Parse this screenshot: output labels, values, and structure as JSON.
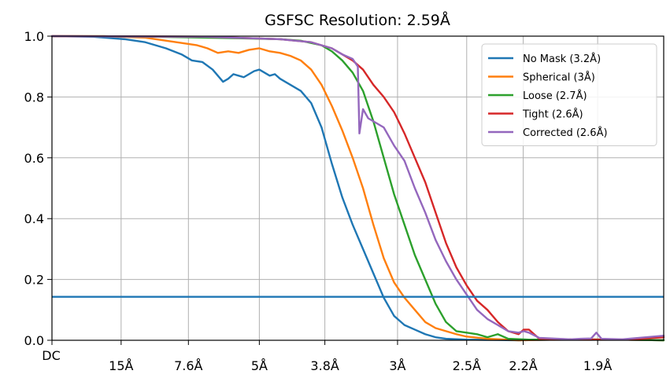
{
  "chart_data": {
    "type": "line",
    "title": "GSFSC Resolution: 2.59Å",
    "xlabel": "",
    "ylabel": "",
    "xlim": [
      0,
      0.59
    ],
    "ylim": [
      0,
      1.0
    ],
    "grid": true,
    "legend_position": "top-right",
    "y_ticks": [
      {
        "value": 0.0,
        "label": "0.0"
      },
      {
        "value": 0.2,
        "label": "0.2"
      },
      {
        "value": 0.4,
        "label": "0.4"
      },
      {
        "value": 0.6,
        "label": "0.6"
      },
      {
        "value": 0.8,
        "label": "0.8"
      },
      {
        "value": 1.0,
        "label": "1.0"
      }
    ],
    "x_ticks": [
      {
        "value": 0.0,
        "label": "DC"
      },
      {
        "value": 0.0667,
        "label": "15Å"
      },
      {
        "value": 0.1316,
        "label": "7.6Å"
      },
      {
        "value": 0.2,
        "label": "5Å"
      },
      {
        "value": 0.2632,
        "label": "3.8Å"
      },
      {
        "value": 0.3333,
        "label": "3Å"
      },
      {
        "value": 0.4,
        "label": "2.5Å"
      },
      {
        "value": 0.4545,
        "label": "2.2Å"
      },
      {
        "value": 0.5263,
        "label": "1.9Å"
      }
    ],
    "threshold": {
      "y": 0.143,
      "color": "#1f77b4"
    },
    "series": [
      {
        "name": "No Mask (3.2Å)",
        "color": "#1f77b4",
        "points": [
          [
            0.0,
            1.0
          ],
          [
            0.04,
            0.998
          ],
          [
            0.07,
            0.99
          ],
          [
            0.09,
            0.98
          ],
          [
            0.11,
            0.96
          ],
          [
            0.125,
            0.94
          ],
          [
            0.135,
            0.92
          ],
          [
            0.145,
            0.915
          ],
          [
            0.155,
            0.89
          ],
          [
            0.16,
            0.87
          ],
          [
            0.165,
            0.85
          ],
          [
            0.17,
            0.86
          ],
          [
            0.175,
            0.875
          ],
          [
            0.18,
            0.87
          ],
          [
            0.185,
            0.865
          ],
          [
            0.19,
            0.875
          ],
          [
            0.195,
            0.885
          ],
          [
            0.2,
            0.89
          ],
          [
            0.205,
            0.88
          ],
          [
            0.21,
            0.87
          ],
          [
            0.215,
            0.875
          ],
          [
            0.22,
            0.86
          ],
          [
            0.23,
            0.84
          ],
          [
            0.24,
            0.82
          ],
          [
            0.25,
            0.78
          ],
          [
            0.26,
            0.7
          ],
          [
            0.27,
            0.58
          ],
          [
            0.28,
            0.47
          ],
          [
            0.29,
            0.38
          ],
          [
            0.3,
            0.3
          ],
          [
            0.31,
            0.22
          ],
          [
            0.32,
            0.14
          ],
          [
            0.33,
            0.08
          ],
          [
            0.34,
            0.05
          ],
          [
            0.35,
            0.035
          ],
          [
            0.36,
            0.02
          ],
          [
            0.37,
            0.01
          ],
          [
            0.38,
            0.005
          ],
          [
            0.4,
            0.002
          ],
          [
            0.45,
            0.0
          ],
          [
            0.5,
            0.003
          ],
          [
            0.55,
            0.002
          ],
          [
            0.59,
            0.0
          ]
        ]
      },
      {
        "name": "Spherical (3Å)",
        "color": "#ff7f0e",
        "points": [
          [
            0.0,
            1.0
          ],
          [
            0.05,
            1.0
          ],
          [
            0.09,
            0.995
          ],
          [
            0.12,
            0.98
          ],
          [
            0.14,
            0.97
          ],
          [
            0.15,
            0.96
          ],
          [
            0.16,
            0.945
          ],
          [
            0.17,
            0.95
          ],
          [
            0.18,
            0.945
          ],
          [
            0.19,
            0.955
          ],
          [
            0.2,
            0.96
          ],
          [
            0.21,
            0.95
          ],
          [
            0.22,
            0.945
          ],
          [
            0.23,
            0.935
          ],
          [
            0.24,
            0.92
          ],
          [
            0.25,
            0.89
          ],
          [
            0.26,
            0.84
          ],
          [
            0.27,
            0.77
          ],
          [
            0.28,
            0.69
          ],
          [
            0.29,
            0.6
          ],
          [
            0.3,
            0.5
          ],
          [
            0.31,
            0.38
          ],
          [
            0.32,
            0.27
          ],
          [
            0.33,
            0.19
          ],
          [
            0.34,
            0.14
          ],
          [
            0.35,
            0.1
          ],
          [
            0.36,
            0.06
          ],
          [
            0.37,
            0.04
          ],
          [
            0.38,
            0.03
          ],
          [
            0.39,
            0.02
          ],
          [
            0.4,
            0.012
          ],
          [
            0.42,
            0.005
          ],
          [
            0.45,
            0.0
          ],
          [
            0.5,
            0.003
          ],
          [
            0.55,
            0.002
          ],
          [
            0.59,
            0.0
          ]
        ]
      },
      {
        "name": "Loose (2.7Å)",
        "color": "#2ca02c",
        "points": [
          [
            0.0,
            1.0
          ],
          [
            0.1,
            0.998
          ],
          [
            0.18,
            0.993
          ],
          [
            0.22,
            0.99
          ],
          [
            0.24,
            0.985
          ],
          [
            0.26,
            0.97
          ],
          [
            0.27,
            0.95
          ],
          [
            0.28,
            0.92
          ],
          [
            0.29,
            0.88
          ],
          [
            0.3,
            0.82
          ],
          [
            0.31,
            0.72
          ],
          [
            0.32,
            0.6
          ],
          [
            0.33,
            0.48
          ],
          [
            0.34,
            0.38
          ],
          [
            0.35,
            0.28
          ],
          [
            0.36,
            0.2
          ],
          [
            0.37,
            0.12
          ],
          [
            0.38,
            0.06
          ],
          [
            0.39,
            0.03
          ],
          [
            0.4,
            0.025
          ],
          [
            0.41,
            0.02
          ],
          [
            0.42,
            0.01
          ],
          [
            0.43,
            0.02
          ],
          [
            0.44,
            0.005
          ],
          [
            0.46,
            0.002
          ],
          [
            0.5,
            0.003
          ],
          [
            0.55,
            0.002
          ],
          [
            0.59,
            0.0
          ]
        ]
      },
      {
        "name": "Tight (2.6Å)",
        "color": "#d62728",
        "points": [
          [
            0.0,
            1.0
          ],
          [
            0.15,
            0.998
          ],
          [
            0.22,
            0.99
          ],
          [
            0.25,
            0.98
          ],
          [
            0.27,
            0.96
          ],
          [
            0.28,
            0.94
          ],
          [
            0.29,
            0.92
          ],
          [
            0.3,
            0.89
          ],
          [
            0.31,
            0.84
          ],
          [
            0.32,
            0.8
          ],
          [
            0.33,
            0.75
          ],
          [
            0.34,
            0.68
          ],
          [
            0.35,
            0.6
          ],
          [
            0.36,
            0.52
          ],
          [
            0.37,
            0.42
          ],
          [
            0.38,
            0.32
          ],
          [
            0.39,
            0.24
          ],
          [
            0.4,
            0.18
          ],
          [
            0.41,
            0.13
          ],
          [
            0.42,
            0.1
          ],
          [
            0.43,
            0.06
          ],
          [
            0.44,
            0.03
          ],
          [
            0.45,
            0.02
          ],
          [
            0.455,
            0.035
          ],
          [
            0.46,
            0.035
          ],
          [
            0.465,
            0.02
          ],
          [
            0.47,
            0.005
          ],
          [
            0.5,
            0.003
          ],
          [
            0.53,
            0.002
          ],
          [
            0.56,
            0.003
          ],
          [
            0.59,
            0.01
          ]
        ]
      },
      {
        "name": "Corrected (2.6Å)",
        "color": "#9467bd",
        "points": [
          [
            0.0,
            1.0
          ],
          [
            0.15,
            0.998
          ],
          [
            0.22,
            0.99
          ],
          [
            0.25,
            0.98
          ],
          [
            0.27,
            0.96
          ],
          [
            0.28,
            0.94
          ],
          [
            0.29,
            0.925
          ],
          [
            0.295,
            0.9
          ],
          [
            0.2965,
            0.68
          ],
          [
            0.3,
            0.76
          ],
          [
            0.305,
            0.73
          ],
          [
            0.31,
            0.72
          ],
          [
            0.32,
            0.7
          ],
          [
            0.33,
            0.64
          ],
          [
            0.34,
            0.59
          ],
          [
            0.35,
            0.5
          ],
          [
            0.36,
            0.42
          ],
          [
            0.37,
            0.33
          ],
          [
            0.38,
            0.26
          ],
          [
            0.39,
            0.2
          ],
          [
            0.4,
            0.15
          ],
          [
            0.41,
            0.1
          ],
          [
            0.42,
            0.07
          ],
          [
            0.43,
            0.05
          ],
          [
            0.44,
            0.03
          ],
          [
            0.45,
            0.025
          ],
          [
            0.455,
            0.03
          ],
          [
            0.46,
            0.025
          ],
          [
            0.47,
            0.008
          ],
          [
            0.5,
            0.003
          ],
          [
            0.51,
            0.005
          ],
          [
            0.52,
            0.006
          ],
          [
            0.525,
            0.025
          ],
          [
            0.53,
            0.005
          ],
          [
            0.55,
            0.003
          ],
          [
            0.59,
            0.015
          ]
        ]
      }
    ]
  }
}
